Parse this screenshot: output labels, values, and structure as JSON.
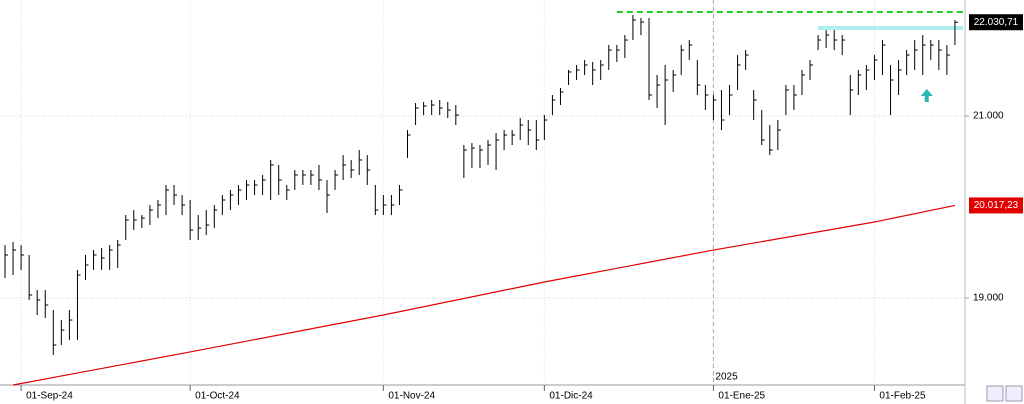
{
  "chart_data": {
    "type": "ohlc",
    "xlim": [
      -0.62,
      119.25
    ],
    "ylim": [
      18044,
      22275
    ],
    "xticks": [
      {
        "value": 2,
        "label": "01-Sep-24"
      },
      {
        "value": 23,
        "label": "01-Oct-24"
      },
      {
        "value": 47,
        "label": "01-Nov-24"
      },
      {
        "value": 67,
        "label": "01-Dic-24"
      },
      {
        "value": 88,
        "label": "01-Ene-25"
      },
      {
        "value": 108,
        "label": "01-Feb-25"
      }
    ],
    "yticks": [
      {
        "value": 21000,
        "label": "21.000"
      },
      {
        "value": 19000,
        "label": "19.000"
      }
    ],
    "grid": true,
    "year_marker": {
      "value": 88,
      "label": "2025"
    },
    "color": "#000000",
    "high": [
      19582,
      19615,
      19582,
      19473,
      19088,
      19088,
      18868,
      18758,
      18868,
      19308,
      19473,
      19528,
      19549,
      19582,
      19637,
      19912,
      19967,
      19912,
      20022,
      20077,
      20242,
      20242,
      20132,
      20077,
      19912,
      19967,
      20022,
      20132,
      20187,
      20242,
      20297,
      20297,
      20352,
      20517,
      20462,
      20242,
      20407,
      20407,
      20407,
      20462,
      20297,
      20407,
      20571,
      20517,
      20626,
      20571,
      20242,
      20132,
      20132,
      20242,
      20846,
      21143,
      21154,
      21176,
      21176,
      21154,
      21121,
      20681,
      20703,
      20681,
      20736,
      20813,
      20846,
      20846,
      20978,
      20956,
      20956,
      21011,
      21231,
      21308,
      21506,
      21561,
      21616,
      21594,
      21616,
      21780,
      21780,
      21890,
      22110,
      22077,
      22077,
      21451,
      21561,
      21506,
      21780,
      21835,
      21616,
      21341,
      21231,
      21286,
      21341,
      21670,
      21725,
      21286,
      21066,
      20901,
      20956,
      21341,
      21341,
      21506,
      21616,
      21890,
      21945,
      21945,
      21890,
      21451,
      21506,
      21561,
      21670,
      21835,
      21561,
      21616,
      21725,
      21835,
      21890,
      21835,
      21835,
      21780,
      22055
    ],
    "low": [
      19220,
      19253,
      19308,
      18978,
      18813,
      18780,
      18374,
      18483,
      18538,
      18538,
      19198,
      19308,
      19308,
      19308,
      19330,
      19637,
      19747,
      19769,
      19802,
      19879,
      19912,
      20022,
      19912,
      19637,
      19637,
      19692,
      19769,
      19912,
      19967,
      20022,
      20077,
      20132,
      20132,
      20077,
      20132,
      20077,
      20187,
      20242,
      20242,
      20187,
      19934,
      20187,
      20297,
      20319,
      20352,
      20242,
      19912,
      19912,
      19912,
      20022,
      20539,
      20901,
      21011,
      21011,
      21011,
      20978,
      20901,
      20319,
      20429,
      20429,
      20462,
      20407,
      20626,
      20681,
      20736,
      20681,
      20626,
      20736,
      21011,
      21121,
      21341,
      21396,
      21451,
      21341,
      21396,
      21506,
      21594,
      21638,
      21835,
      21890,
      21176,
      21088,
      20901,
      21264,
      21451,
      21616,
      21231,
      21066,
      20956,
      20846,
      21011,
      21286,
      21506,
      20956,
      20681,
      20571,
      20626,
      21011,
      21066,
      21231,
      21396,
      21725,
      21747,
      21725,
      21670,
      21011,
      21231,
      21286,
      21396,
      21451,
      21011,
      21231,
      21451,
      21506,
      21451,
      21616,
      21506,
      21451,
      21780
    ],
    "close": [
      19473,
      19528,
      19473,
      19033,
      18978,
      18923,
      18483,
      18648,
      18758,
      19253,
      19363,
      19473,
      19440,
      19528,
      19582,
      19857,
      19857,
      19879,
      19967,
      20022,
      20187,
      20132,
      20022,
      19747,
      19769,
      19802,
      19967,
      20077,
      20132,
      20187,
      20242,
      20242,
      20297,
      20462,
      20297,
      20187,
      20352,
      20352,
      20352,
      20297,
      20132,
      20352,
      20462,
      20407,
      20517,
      20407,
      19967,
      20022,
      20022,
      20187,
      20791,
      21088,
      21110,
      21121,
      21088,
      21066,
      21011,
      20626,
      20648,
      20626,
      20681,
      20736,
      20791,
      20791,
      20901,
      20846,
      20736,
      20956,
      21176,
      21264,
      21484,
      21506,
      21561,
      21506,
      21561,
      21725,
      21725,
      21835,
      22055,
      22033,
      21231,
      21341,
      21396,
      21451,
      21725,
      21780,
      21341,
      21231,
      21176,
      20956,
      21231,
      21561,
      21670,
      21176,
      20736,
      20626,
      20846,
      21286,
      21231,
      21451,
      21561,
      21835,
      21890,
      21835,
      21835,
      21286,
      21451,
      21506,
      21616,
      21780,
      21396,
      21506,
      21670,
      21725,
      21780,
      21780,
      21725,
      21670,
      22030.71
    ],
    "moving_average": {
      "color": "#e00000",
      "x": [
        1,
        23,
        47,
        67,
        88,
        108,
        118
      ],
      "values": [
        18044,
        18407,
        18813,
        19176,
        19527,
        19835,
        20017.23
      ]
    },
    "levels": [
      {
        "value": 22143,
        "color": "#22cc22",
        "style": "dashed",
        "x": [
          76,
          119
        ]
      },
      {
        "value": 21967,
        "color": "#aeeef0",
        "style": "solid",
        "x": [
          101,
          119
        ]
      }
    ],
    "price_labels": [
      {
        "value": 22030.71,
        "label": "22.030,71",
        "color": "#000000"
      },
      {
        "value": 20017.23,
        "label": "20.017,23",
        "color": "#e00000"
      }
    ],
    "arrow": {
      "x": 114.5,
      "y": 21220,
      "color": "#2bb5b0"
    }
  }
}
